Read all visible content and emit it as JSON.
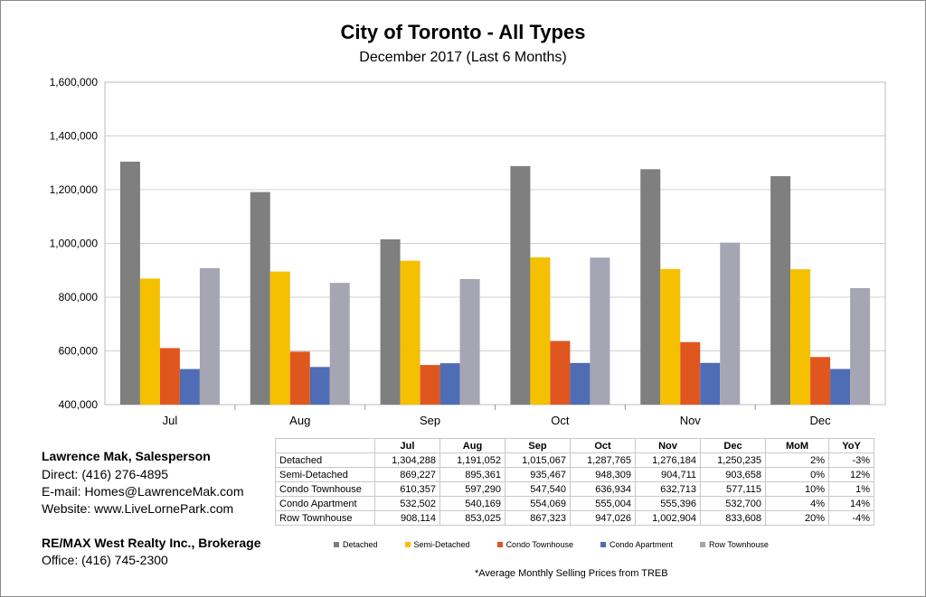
{
  "chart_data": {
    "type": "bar",
    "title": "City of Toronto - All Types",
    "subtitle": "December 2017 (Last 6 Months)",
    "categories": [
      "Jul",
      "Aug",
      "Sep",
      "Oct",
      "Nov",
      "Dec"
    ],
    "ylim": [
      400000,
      1600000
    ],
    "yticks": [
      "400,000",
      "600,000",
      "800,000",
      "1,000,000",
      "1,200,000",
      "1,400,000",
      "1,600,000"
    ],
    "grid": true,
    "legend_position": "bottom",
    "series": [
      {
        "name": "Detached",
        "color": "#7f7f7f",
        "values": [
          1304288,
          1191052,
          1015067,
          1287765,
          1276184,
          1250235
        ],
        "labels": [
          "1,304,288",
          "1,191,052",
          "1,015,067",
          "1,287,765",
          "1,276,184",
          "1,250,235"
        ],
        "mom": "2%",
        "yoy": "-3%"
      },
      {
        "name": "Semi-Detached",
        "color": "#f5c000",
        "values": [
          869227,
          895361,
          935467,
          948309,
          904711,
          903658
        ],
        "labels": [
          "869,227",
          "895,361",
          "935,467",
          "948,309",
          "904,711",
          "903,658"
        ],
        "mom": "0%",
        "yoy": "12%"
      },
      {
        "name": "Condo Townhouse",
        "color": "#e0561f",
        "values": [
          610357,
          597290,
          547540,
          636934,
          632713,
          577115
        ],
        "labels": [
          "610,357",
          "597,290",
          "547,540",
          "636,934",
          "632,713",
          "577,115"
        ],
        "mom": "10%",
        "yoy": "1%"
      },
      {
        "name": "Condo Apartment",
        "color": "#4e6db5",
        "values": [
          532502,
          540169,
          554069,
          555004,
          555396,
          532700
        ],
        "labels": [
          "532,502",
          "540,169",
          "554,069",
          "555,004",
          "555,396",
          "532,700"
        ],
        "mom": "4%",
        "yoy": "14%"
      },
      {
        "name": "Row Townhouse",
        "color": "#a5a5b3",
        "values": [
          908114,
          853025,
          867323,
          947026,
          1002904,
          833608
        ],
        "labels": [
          "908,114",
          "853,025",
          "867,323",
          "947,026",
          "1,002,904",
          "833,608"
        ],
        "mom": "20%",
        "yoy": "-4%"
      }
    ],
    "table_headers": [
      "",
      "Jul",
      "Aug",
      "Sep",
      "Oct",
      "Nov",
      "Dec",
      "MoM",
      "YoY"
    ],
    "footnote": "*Average Monthly Selling Prices  from TREB"
  },
  "contact": {
    "name": "Lawrence Mak, Salesperson",
    "direct": "Direct:  (416) 276-4895",
    "email": "E-mail:  Homes@LawrenceMak.com",
    "website": "Website: www.LiveLornePark.com",
    "brokerage": "RE/MAX West Realty Inc., Brokerage",
    "office": "Office: (416) 745-2300"
  }
}
